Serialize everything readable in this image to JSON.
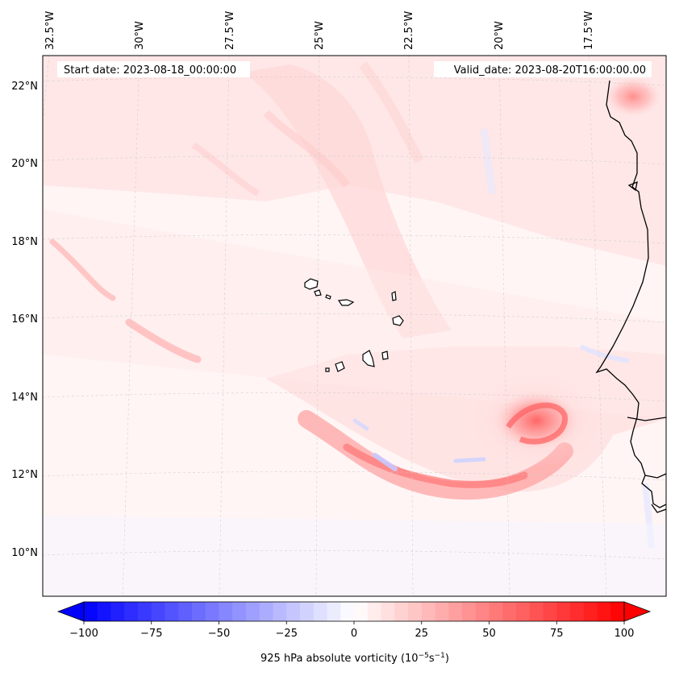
{
  "map": {
    "start_date": "Start date: 2023-08-18_00:00:00",
    "valid_date": "Valid_date: 2023-08-20T16:00:00.00",
    "lon_labels": [
      "32.5°W",
      "30°W",
      "27.5°W",
      "25°W",
      "22.5°W",
      "20°W",
      "17.5°W"
    ],
    "lat_labels": [
      "22°N",
      "20°N",
      "18°N",
      "16°N",
      "14°N",
      "12°N",
      "10°N"
    ]
  },
  "colorbar": {
    "label": "925 hPa absolute vorticity (10",
    "label_exp1": "−5",
    "label_mid": "s",
    "label_exp2": "−1",
    "label_end": ")",
    "ticks": [
      "−100",
      "−75",
      "−50",
      "−25",
      "0",
      "25",
      "50",
      "75",
      "100"
    ],
    "min": -100,
    "max": 100,
    "low_color": "#0000ff",
    "high_color": "#ff0000"
  }
}
